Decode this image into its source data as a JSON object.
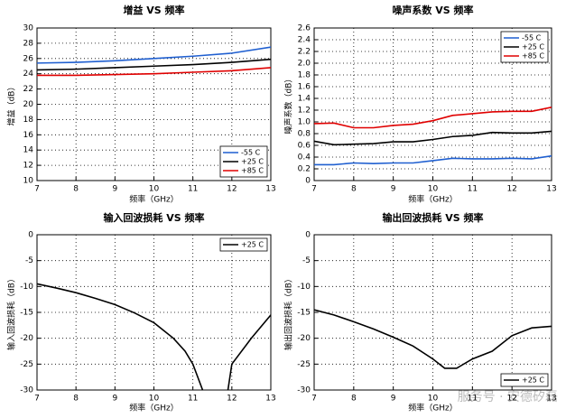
{
  "watermark": "服务号 · 安德矽磊",
  "chart_data": [
    {
      "type": "line",
      "title": "增益 VS 频率",
      "xlabel": "频率（GHz）",
      "ylabel": "增益（dB）",
      "xlim": [
        7,
        13
      ],
      "xticks": [
        7,
        8,
        9,
        10,
        11,
        12,
        13
      ],
      "ylim": [
        10,
        30
      ],
      "yticks": [
        10,
        12,
        14,
        16,
        18,
        20,
        22,
        24,
        26,
        28,
        30
      ],
      "grid": true,
      "legend": "lower right",
      "x": [
        7,
        8,
        9,
        10,
        11,
        12,
        13
      ],
      "series": [
        {
          "name": "-55 C",
          "color": "#1f5fd0",
          "values": [
            25.4,
            25.5,
            25.7,
            26.0,
            26.3,
            26.7,
            27.5
          ]
        },
        {
          "name": "+25 C",
          "color": "#000000",
          "values": [
            24.5,
            24.6,
            24.8,
            25.0,
            25.2,
            25.5,
            25.9
          ]
        },
        {
          "name": "+85 C",
          "color": "#e00000",
          "values": [
            23.8,
            23.8,
            23.9,
            24.0,
            24.2,
            24.4,
            24.8
          ]
        }
      ]
    },
    {
      "type": "line",
      "title": "噪声系数 VS 频率",
      "xlabel": "频率（GHz）",
      "ylabel": "噪声系数（dB）",
      "xlim": [
        7,
        13
      ],
      "xticks": [
        7,
        8,
        9,
        10,
        11,
        12,
        13
      ],
      "ylim": [
        0,
        2.6
      ],
      "yticks": [
        0,
        0.2,
        0.4,
        0.6,
        0.8,
        {
          "value": 1,
          "label": "1.0"
        },
        1.2,
        1.4,
        1.6,
        1.8,
        {
          "value": 2,
          "label": "2.0"
        },
        2.2,
        2.4,
        2.6
      ],
      "grid": true,
      "legend": "upper right",
      "x": [
        7,
        7.5,
        8,
        8.5,
        9,
        9.5,
        10,
        10.5,
        11,
        11.5,
        12,
        12.5,
        13
      ],
      "series": [
        {
          "name": "-55 C",
          "color": "#1f5fd0",
          "values": [
            0.27,
            0.27,
            0.3,
            0.29,
            0.3,
            0.3,
            0.34,
            0.38,
            0.37,
            0.37,
            0.38,
            0.37,
            0.42
          ]
        },
        {
          "name": "+25 C",
          "color": "#000000",
          "values": [
            0.67,
            0.61,
            0.62,
            0.63,
            0.66,
            0.66,
            0.7,
            0.75,
            0.77,
            0.82,
            0.81,
            0.81,
            0.84
          ]
        },
        {
          "name": "+85 C",
          "color": "#e00000",
          "values": [
            0.97,
            0.98,
            0.9,
            0.9,
            0.94,
            0.96,
            1.02,
            1.11,
            1.14,
            1.17,
            1.18,
            1.18,
            1.25
          ]
        }
      ]
    },
    {
      "type": "line",
      "title": "输入回波损耗 VS 频率",
      "xlabel": "频率（GHz）",
      "ylabel": "输入回波损耗（dB）",
      "xlim": [
        7,
        13
      ],
      "xticks": [
        7,
        8,
        9,
        10,
        11,
        12,
        13
      ],
      "ylim": [
        -30,
        0
      ],
      "yticks": [
        -30,
        -25,
        -20,
        -15,
        -10,
        -5,
        0
      ],
      "grid": true,
      "legend": "upper right",
      "x": [
        7,
        7.5,
        8,
        8.5,
        9,
        9.5,
        10,
        10.5,
        10.8,
        11,
        11.25,
        11.5,
        11.9,
        12,
        12.5,
        13
      ],
      "series": [
        {
          "name": "+25 C",
          "color": "#000000",
          "values": [
            -9.5,
            -10.3,
            -11.2,
            -12.3,
            -13.5,
            -15.1,
            -17,
            -20,
            -22.5,
            -25,
            -30,
            null,
            -30,
            -25,
            -20,
            -15.5
          ]
        }
      ]
    },
    {
      "type": "line",
      "title": "输出回波损耗 VS 频率",
      "xlabel": "频率（GHz）",
      "ylabel": "输出回波损耗（dB）",
      "xlim": [
        7,
        13
      ],
      "xticks": [
        7,
        8,
        9,
        10,
        11,
        12,
        13
      ],
      "ylim": [
        -30,
        0
      ],
      "yticks": [
        -30,
        -25,
        -20,
        -15,
        -10,
        -5,
        0
      ],
      "grid": true,
      "legend": "lower right",
      "x": [
        7,
        7.5,
        8,
        8.5,
        9,
        9.5,
        10,
        10.3,
        10.6,
        11,
        11.5,
        12,
        12.5,
        13
      ],
      "series": [
        {
          "name": "+25 C",
          "color": "#000000",
          "values": [
            -14.5,
            -15.5,
            -16.8,
            -18.2,
            -19.8,
            -21.5,
            -24,
            -25.8,
            -25.8,
            -24,
            -22.5,
            -19.5,
            -18,
            -17.7
          ]
        }
      ]
    }
  ]
}
